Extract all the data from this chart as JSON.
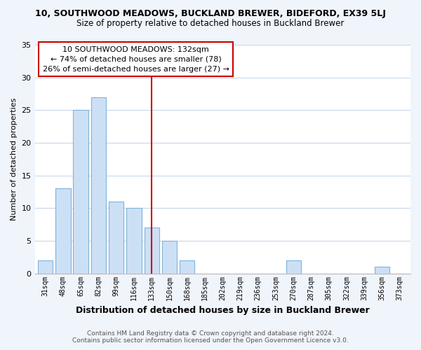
{
  "title": "10, SOUTHWOOD MEADOWS, BUCKLAND BREWER, BIDEFORD, EX39 5LJ",
  "subtitle": "Size of property relative to detached houses in Buckland Brewer",
  "xlabel": "Distribution of detached houses by size in Buckland Brewer",
  "ylabel": "Number of detached properties",
  "bar_labels": [
    "31sqm",
    "48sqm",
    "65sqm",
    "82sqm",
    "99sqm",
    "116sqm",
    "133sqm",
    "150sqm",
    "168sqm",
    "185sqm",
    "202sqm",
    "219sqm",
    "236sqm",
    "253sqm",
    "270sqm",
    "287sqm",
    "305sqm",
    "322sqm",
    "339sqm",
    "356sqm",
    "373sqm"
  ],
  "bar_values": [
    2,
    13,
    25,
    27,
    11,
    10,
    7,
    5,
    2,
    0,
    0,
    0,
    0,
    0,
    2,
    0,
    0,
    0,
    0,
    1,
    0
  ],
  "bar_color": "#cce0f5",
  "bar_edge_color": "#7fb3d9",
  "vline_x": 6,
  "vline_color": "#cc0000",
  "ylim": [
    0,
    35
  ],
  "yticks": [
    0,
    5,
    10,
    15,
    20,
    25,
    30,
    35
  ],
  "annotation_title": "10 SOUTHWOOD MEADOWS: 132sqm",
  "annotation_line1": "← 74% of detached houses are smaller (78)",
  "annotation_line2": "26% of semi-detached houses are larger (27) →",
  "annotation_box_color": "#ffffff",
  "annotation_box_edge": "#cc0000",
  "footer1": "Contains HM Land Registry data © Crown copyright and database right 2024.",
  "footer2": "Contains public sector information licensed under the Open Government Licence v3.0.",
  "bg_color": "#f0f4fb",
  "plot_bg_color": "#ffffff",
  "grid_color": "#c8d8ea"
}
